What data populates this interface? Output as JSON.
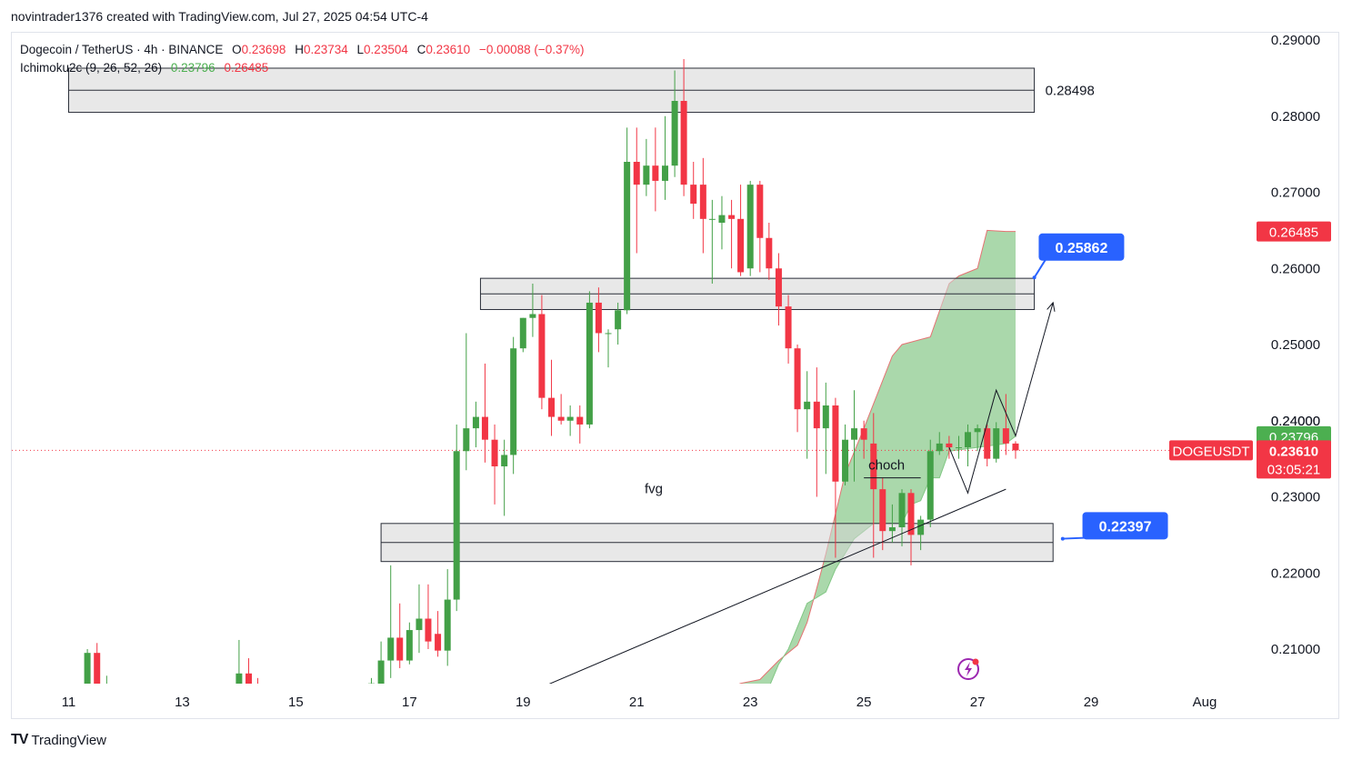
{
  "credit": "novintrader1376 created with TradingView.com, Jul 27, 2025 04:54 UTC-4",
  "legend": {
    "symbol": "Dogecoin / TetherUS · 4h · BINANCE",
    "o_label": "O",
    "o": "0.23698",
    "h_label": "H",
    "h": "0.23734",
    "l_label": "L",
    "l": "0.23504",
    "c_label": "C",
    "c": "0.23610",
    "change": "−0.00088 (−0.37%)",
    "indicator": "Ichimoku2c (9, 26, 52, 26)",
    "ind_val1": "0.23796",
    "ind_val2": "0.26485"
  },
  "footer": {
    "logo": "TV",
    "brand": "TradingView"
  },
  "colors": {
    "up": "#43a047",
    "down": "#f23645",
    "cloud": "#a5d6a7",
    "zone": "#d6d6d6",
    "blue": "#2962ff",
    "axis_text": "#131722"
  },
  "icon": "lightning-icon",
  "chart_data": {
    "type": "candlestick",
    "symbol": "DOGEUSDT",
    "interval": "4h",
    "ylim": [
      0.205,
      0.292
    ],
    "y_ticks": [
      "0.21000",
      "0.22000",
      "0.23000",
      "0.24000",
      "0.25000",
      "0.26000",
      "0.27000",
      "0.28000",
      "0.29000"
    ],
    "x_ticks": [
      "11",
      "13",
      "15",
      "17",
      "19",
      "21",
      "23",
      "25",
      "27",
      "29",
      "Aug"
    ],
    "x_tick_days": [
      11,
      13,
      15,
      17,
      19,
      21,
      23,
      25,
      27,
      29,
      31
    ],
    "candles": [
      {
        "t": 11.33,
        "o": 0.205,
        "h": 0.21,
        "l": 0.205,
        "c": 0.2095
      },
      {
        "t": 11.5,
        "o": 0.2095,
        "h": 0.2108,
        "l": 0.205,
        "c": 0.205
      },
      {
        "t": 11.67,
        "o": 0.205,
        "h": 0.2065,
        "l": 0.205,
        "c": 0.205
      },
      {
        "t": 14.0,
        "o": 0.205,
        "h": 0.2112,
        "l": 0.205,
        "c": 0.2068
      },
      {
        "t": 14.17,
        "o": 0.2068,
        "h": 0.2088,
        "l": 0.205,
        "c": 0.2052
      },
      {
        "t": 14.33,
        "o": 0.2052,
        "h": 0.2062,
        "l": 0.205,
        "c": 0.205
      },
      {
        "t": 16.33,
        "o": 0.205,
        "h": 0.2062,
        "l": 0.205,
        "c": 0.2055
      },
      {
        "t": 16.5,
        "o": 0.205,
        "h": 0.211,
        "l": 0.205,
        "c": 0.2085
      },
      {
        "t": 16.67,
        "o": 0.2085,
        "h": 0.221,
        "l": 0.2062,
        "c": 0.2115
      },
      {
        "t": 16.83,
        "o": 0.2115,
        "h": 0.216,
        "l": 0.2075,
        "c": 0.2085
      },
      {
        "t": 17.0,
        "o": 0.2085,
        "h": 0.2135,
        "l": 0.208,
        "c": 0.2125
      },
      {
        "t": 17.17,
        "o": 0.2125,
        "h": 0.2185,
        "l": 0.2095,
        "c": 0.214
      },
      {
        "t": 17.33,
        "o": 0.214,
        "h": 0.2185,
        "l": 0.21,
        "c": 0.211
      },
      {
        "t": 17.5,
        "o": 0.212,
        "h": 0.215,
        "l": 0.209,
        "c": 0.2098
      },
      {
        "t": 17.67,
        "o": 0.2098,
        "h": 0.2205,
        "l": 0.2078,
        "c": 0.2165
      },
      {
        "t": 17.83,
        "o": 0.2165,
        "h": 0.2395,
        "l": 0.215,
        "c": 0.236
      },
      {
        "t": 18.0,
        "o": 0.236,
        "h": 0.2515,
        "l": 0.2335,
        "c": 0.239
      },
      {
        "t": 18.17,
        "o": 0.239,
        "h": 0.2425,
        "l": 0.2365,
        "c": 0.2405
      },
      {
        "t": 18.33,
        "o": 0.2405,
        "h": 0.2475,
        "l": 0.2345,
        "c": 0.2375
      },
      {
        "t": 18.5,
        "o": 0.2375,
        "h": 0.2395,
        "l": 0.229,
        "c": 0.234
      },
      {
        "t": 18.67,
        "o": 0.234,
        "h": 0.2375,
        "l": 0.2275,
        "c": 0.2355
      },
      {
        "t": 18.83,
        "o": 0.2355,
        "h": 0.251,
        "l": 0.233,
        "c": 0.2495
      },
      {
        "t": 19.0,
        "o": 0.2495,
        "h": 0.2535,
        "l": 0.249,
        "c": 0.2535
      },
      {
        "t": 19.17,
        "o": 0.2535,
        "h": 0.258,
        "l": 0.251,
        "c": 0.254
      },
      {
        "t": 19.33,
        "o": 0.254,
        "h": 0.2565,
        "l": 0.2415,
        "c": 0.243
      },
      {
        "t": 19.5,
        "o": 0.243,
        "h": 0.248,
        "l": 0.238,
        "c": 0.2405
      },
      {
        "t": 19.67,
        "o": 0.2405,
        "h": 0.2435,
        "l": 0.2395,
        "c": 0.24
      },
      {
        "t": 19.83,
        "o": 0.24,
        "h": 0.242,
        "l": 0.238,
        "c": 0.2405
      },
      {
        "t": 20.0,
        "o": 0.2405,
        "h": 0.242,
        "l": 0.237,
        "c": 0.2395
      },
      {
        "t": 20.17,
        "o": 0.2395,
        "h": 0.257,
        "l": 0.239,
        "c": 0.2555
      },
      {
        "t": 20.33,
        "o": 0.2555,
        "h": 0.2575,
        "l": 0.249,
        "c": 0.2515
      },
      {
        "t": 20.5,
        "o": 0.2515,
        "h": 0.252,
        "l": 0.247,
        "c": 0.2515
      },
      {
        "t": 20.67,
        "o": 0.252,
        "h": 0.2555,
        "l": 0.25,
        "c": 0.2545
      },
      {
        "t": 20.83,
        "o": 0.2545,
        "h": 0.2785,
        "l": 0.254,
        "c": 0.274
      },
      {
        "t": 21.0,
        "o": 0.274,
        "h": 0.2785,
        "l": 0.262,
        "c": 0.271
      },
      {
        "t": 21.17,
        "o": 0.271,
        "h": 0.277,
        "l": 0.2695,
        "c": 0.2735
      },
      {
        "t": 21.33,
        "o": 0.2735,
        "h": 0.2785,
        "l": 0.2675,
        "c": 0.2715
      },
      {
        "t": 21.5,
        "o": 0.2715,
        "h": 0.28,
        "l": 0.269,
        "c": 0.2735
      },
      {
        "t": 21.67,
        "o": 0.2735,
        "h": 0.286,
        "l": 0.272,
        "c": 0.282
      },
      {
        "t": 21.83,
        "o": 0.282,
        "h": 0.2875,
        "l": 0.2695,
        "c": 0.271
      },
      {
        "t": 22.0,
        "o": 0.271,
        "h": 0.274,
        "l": 0.2665,
        "c": 0.2685
      },
      {
        "t": 22.17,
        "o": 0.271,
        "h": 0.2745,
        "l": 0.262,
        "c": 0.2665
      },
      {
        "t": 22.33,
        "o": 0.2665,
        "h": 0.269,
        "l": 0.258,
        "c": 0.2665
      },
      {
        "t": 22.5,
        "o": 0.266,
        "h": 0.2695,
        "l": 0.2625,
        "c": 0.267
      },
      {
        "t": 22.67,
        "o": 0.267,
        "h": 0.269,
        "l": 0.26,
        "c": 0.2665
      },
      {
        "t": 22.83,
        "o": 0.2665,
        "h": 0.271,
        "l": 0.259,
        "c": 0.2595
      },
      {
        "t": 23.0,
        "o": 0.26,
        "h": 0.2715,
        "l": 0.259,
        "c": 0.271
      },
      {
        "t": 23.17,
        "o": 0.271,
        "h": 0.2715,
        "l": 0.2595,
        "c": 0.264
      },
      {
        "t": 23.33,
        "o": 0.264,
        "h": 0.266,
        "l": 0.2585,
        "c": 0.26
      },
      {
        "t": 23.5,
        "o": 0.26,
        "h": 0.262,
        "l": 0.2525,
        "c": 0.255
      },
      {
        "t": 23.67,
        "o": 0.255,
        "h": 0.2565,
        "l": 0.2475,
        "c": 0.2495
      },
      {
        "t": 23.83,
        "o": 0.2495,
        "h": 0.25,
        "l": 0.2385,
        "c": 0.2415
      },
      {
        "t": 24.0,
        "o": 0.2415,
        "h": 0.2465,
        "l": 0.235,
        "c": 0.2425
      },
      {
        "t": 24.17,
        "o": 0.2425,
        "h": 0.247,
        "l": 0.23,
        "c": 0.239
      },
      {
        "t": 24.33,
        "o": 0.239,
        "h": 0.245,
        "l": 0.233,
        "c": 0.242
      },
      {
        "t": 24.5,
        "o": 0.242,
        "h": 0.243,
        "l": 0.222,
        "c": 0.232
      },
      {
        "t": 24.67,
        "o": 0.232,
        "h": 0.2395,
        "l": 0.2315,
        "c": 0.2375
      },
      {
        "t": 24.83,
        "o": 0.2375,
        "h": 0.244,
        "l": 0.232,
        "c": 0.239
      },
      {
        "t": 25.0,
        "o": 0.239,
        "h": 0.24,
        "l": 0.235,
        "c": 0.2375
      },
      {
        "t": 25.17,
        "o": 0.237,
        "h": 0.241,
        "l": 0.222,
        "c": 0.231
      },
      {
        "t": 25.33,
        "o": 0.231,
        "h": 0.2325,
        "l": 0.223,
        "c": 0.2255
      },
      {
        "t": 25.5,
        "o": 0.2255,
        "h": 0.229,
        "l": 0.224,
        "c": 0.226
      },
      {
        "t": 25.67,
        "o": 0.226,
        "h": 0.231,
        "l": 0.2235,
        "c": 0.2305
      },
      {
        "t": 25.83,
        "o": 0.2305,
        "h": 0.231,
        "l": 0.221,
        "c": 0.225
      },
      {
        "t": 26.0,
        "o": 0.225,
        "h": 0.2275,
        "l": 0.223,
        "c": 0.227
      },
      {
        "t": 26.17,
        "o": 0.227,
        "h": 0.2375,
        "l": 0.226,
        "c": 0.236
      },
      {
        "t": 26.33,
        "o": 0.236,
        "h": 0.2385,
        "l": 0.2355,
        "c": 0.237
      },
      {
        "t": 26.5,
        "o": 0.237,
        "h": 0.238,
        "l": 0.235,
        "c": 0.2365
      },
      {
        "t": 26.67,
        "o": 0.2365,
        "h": 0.238,
        "l": 0.235,
        "c": 0.2365
      },
      {
        "t": 26.83,
        "o": 0.2365,
        "h": 0.2395,
        "l": 0.234,
        "c": 0.2385
      },
      {
        "t": 27.0,
        "o": 0.2385,
        "h": 0.2395,
        "l": 0.236,
        "c": 0.239
      },
      {
        "t": 27.17,
        "o": 0.239,
        "h": 0.2395,
        "l": 0.234,
        "c": 0.235
      },
      {
        "t": 27.33,
        "o": 0.235,
        "h": 0.2398,
        "l": 0.2345,
        "c": 0.239
      },
      {
        "t": 27.5,
        "o": 0.239,
        "h": 0.2435,
        "l": 0.2355,
        "c": 0.237
      },
      {
        "t": 27.67,
        "o": 0.237,
        "h": 0.2373,
        "l": 0.235,
        "c": 0.2361
      }
    ],
    "cloud_upper": [
      [
        22.67,
        0.205
      ],
      [
        22.83,
        0.2055
      ],
      [
        23.17,
        0.206
      ],
      [
        23.5,
        0.2085
      ],
      [
        23.83,
        0.2105
      ],
      [
        24.0,
        0.2135
      ],
      [
        24.17,
        0.218
      ],
      [
        24.33,
        0.2225
      ],
      [
        24.67,
        0.233
      ],
      [
        25.0,
        0.239
      ],
      [
        25.5,
        0.2485
      ],
      [
        25.67,
        0.25
      ],
      [
        26.17,
        0.251
      ],
      [
        26.5,
        0.258
      ],
      [
        26.67,
        0.259
      ],
      [
        27.0,
        0.26
      ],
      [
        27.17,
        0.265
      ],
      [
        27.5,
        0.26485
      ],
      [
        27.67,
        0.26485
      ]
    ],
    "cloud_lower": [
      [
        22.67,
        0.205
      ],
      [
        23.33,
        0.205
      ],
      [
        23.5,
        0.208
      ],
      [
        23.67,
        0.21
      ],
      [
        24.0,
        0.216
      ],
      [
        24.33,
        0.2175
      ],
      [
        24.5,
        0.2205
      ],
      [
        24.83,
        0.2245
      ],
      [
        25.0,
        0.2255
      ],
      [
        25.17,
        0.2265
      ],
      [
        25.67,
        0.2265
      ],
      [
        25.83,
        0.229
      ],
      [
        26.0,
        0.2295
      ],
      [
        26.17,
        0.2325
      ],
      [
        26.33,
        0.2325
      ],
      [
        26.5,
        0.236
      ],
      [
        27.0,
        0.2365
      ],
      [
        27.5,
        0.237
      ],
      [
        27.67,
        0.23796
      ]
    ],
    "zones": [
      {
        "t1": 11.0,
        "t2": 28.0,
        "top": 0.2863,
        "bottom": 0.2805,
        "mid": 0.2834,
        "label": "0.28498"
      },
      {
        "t1": 18.25,
        "t2": 28.0,
        "top": 0.2587,
        "bottom": 0.2546,
        "mid": 0.25665,
        "label": ""
      },
      {
        "t1": 16.5,
        "t2": 28.33,
        "top": 0.2265,
        "bottom": 0.2215,
        "mid": 0.224,
        "label": ""
      }
    ],
    "trendline": [
      [
        19.33,
        0.205
      ],
      [
        27.5,
        0.231
      ]
    ],
    "projection": [
      [
        26.5,
        0.2365
      ],
      [
        26.83,
        0.2305
      ],
      [
        27.33,
        0.244
      ],
      [
        27.67,
        0.238
      ],
      [
        28.33,
        0.2555
      ]
    ],
    "choch_line": {
      "t1": 25.0,
      "t2": 26.0,
      "y": 0.2325
    },
    "annotations": {
      "fvg": "fvg",
      "choch": "choch"
    },
    "target_labels": [
      {
        "text": "0.25862",
        "t": 28.83,
        "y": 0.2628,
        "anchor_t": 28.0,
        "anchor_y": 0.2588
      },
      {
        "text": "0.22397",
        "t": 29.6,
        "y": 0.2262,
        "anchor_t": 28.5,
        "anchor_y": 0.2245
      }
    ],
    "axis_labels": {
      "ichimoku_lead_b": "0.26485",
      "ichimoku_lead_a": "0.23796",
      "last_price": "0.23610",
      "symbol": "DOGEUSDT",
      "countdown": "03:05:21",
      "hidden_tick": "0.24000"
    },
    "last_price": 0.2361,
    "lead_a": 0.23796,
    "lead_b": 0.26485
  }
}
